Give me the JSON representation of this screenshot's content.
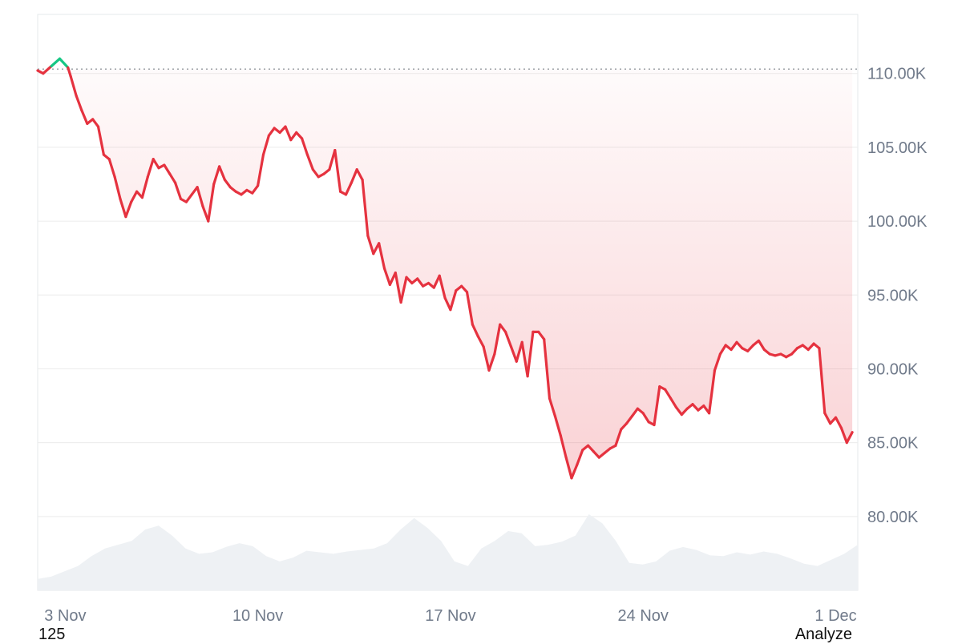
{
  "chart_data": {
    "type": "line",
    "title": "",
    "xlabel": "",
    "ylabel": "",
    "x_ticks": [
      "3 Nov",
      "10 Nov",
      "17 Nov",
      "24 Nov",
      "1 Dec"
    ],
    "y_ticks": [
      "80.00K",
      "85.00K",
      "90.00K",
      "95.00K",
      "100.00K",
      "105.00K",
      "110.00K"
    ],
    "ylim": [
      75000,
      114000
    ],
    "xlim": [
      2.0,
      31.8
    ],
    "reference_line": 110300,
    "grid": true,
    "colors": {
      "down": "#e5323f",
      "up": "#16c784",
      "fill": "#e5323f",
      "volume": "#eef1f4",
      "grid": "#ececec",
      "reference": "#9aa0a6"
    },
    "series": [
      {
        "values": [
          [
            2.0,
            110200
          ],
          [
            2.2,
            110000
          ],
          [
            2.5,
            110500
          ],
          [
            2.8,
            111000
          ],
          [
            3.1,
            110400
          ],
          [
            3.2,
            109800
          ],
          [
            3.4,
            108500
          ],
          [
            3.6,
            107500
          ],
          [
            3.8,
            106600
          ],
          [
            4.0,
            106900
          ],
          [
            4.2,
            106400
          ],
          [
            4.4,
            104500
          ],
          [
            4.6,
            104200
          ],
          [
            4.8,
            103000
          ],
          [
            5.0,
            101500
          ],
          [
            5.2,
            100300
          ],
          [
            5.4,
            101300
          ],
          [
            5.6,
            102000
          ],
          [
            5.8,
            101600
          ],
          [
            6.0,
            103000
          ],
          [
            6.2,
            104200
          ],
          [
            6.4,
            103600
          ],
          [
            6.6,
            103800
          ],
          [
            6.8,
            103200
          ],
          [
            7.0,
            102600
          ],
          [
            7.2,
            101500
          ],
          [
            7.4,
            101300
          ],
          [
            7.6,
            101800
          ],
          [
            7.8,
            102300
          ],
          [
            8.0,
            101000
          ],
          [
            8.2,
            100000
          ],
          [
            8.4,
            102500
          ],
          [
            8.6,
            103700
          ],
          [
            8.8,
            102800
          ],
          [
            9.0,
            102300
          ],
          [
            9.2,
            102000
          ],
          [
            9.4,
            101800
          ],
          [
            9.6,
            102100
          ],
          [
            9.8,
            101900
          ],
          [
            10.0,
            102400
          ],
          [
            10.2,
            104500
          ],
          [
            10.4,
            105800
          ],
          [
            10.6,
            106300
          ],
          [
            10.8,
            106000
          ],
          [
            11.0,
            106400
          ],
          [
            11.2,
            105500
          ],
          [
            11.4,
            106000
          ],
          [
            11.6,
            105600
          ],
          [
            11.8,
            104500
          ],
          [
            12.0,
            103500
          ],
          [
            12.2,
            103000
          ],
          [
            12.4,
            103200
          ],
          [
            12.6,
            103500
          ],
          [
            12.8,
            104800
          ],
          [
            13.0,
            102000
          ],
          [
            13.2,
            101800
          ],
          [
            13.4,
            102600
          ],
          [
            13.6,
            103500
          ],
          [
            13.8,
            102800
          ],
          [
            14.0,
            99000
          ],
          [
            14.2,
            97800
          ],
          [
            14.4,
            98500
          ],
          [
            14.6,
            96800
          ],
          [
            14.8,
            95700
          ],
          [
            15.0,
            96500
          ],
          [
            15.2,
            94500
          ],
          [
            15.4,
            96200
          ],
          [
            15.6,
            95800
          ],
          [
            15.8,
            96100
          ],
          [
            16.0,
            95600
          ],
          [
            16.2,
            95800
          ],
          [
            16.4,
            95500
          ],
          [
            16.6,
            96300
          ],
          [
            16.8,
            94800
          ],
          [
            17.0,
            94000
          ],
          [
            17.2,
            95300
          ],
          [
            17.4,
            95600
          ],
          [
            17.6,
            95200
          ],
          [
            17.8,
            93000
          ],
          [
            18.0,
            92200
          ],
          [
            18.2,
            91500
          ],
          [
            18.4,
            89900
          ],
          [
            18.6,
            91000
          ],
          [
            18.8,
            93000
          ],
          [
            19.0,
            92500
          ],
          [
            19.2,
            91500
          ],
          [
            19.4,
            90500
          ],
          [
            19.6,
            91800
          ],
          [
            19.8,
            89500
          ],
          [
            20.0,
            92500
          ],
          [
            20.2,
            92500
          ],
          [
            20.4,
            92000
          ],
          [
            20.6,
            88000
          ],
          [
            20.8,
            86800
          ],
          [
            21.0,
            85500
          ],
          [
            21.2,
            84000
          ],
          [
            21.4,
            82600
          ],
          [
            21.6,
            83500
          ],
          [
            21.8,
            84500
          ],
          [
            22.0,
            84800
          ],
          [
            22.2,
            84400
          ],
          [
            22.4,
            84000
          ],
          [
            22.6,
            84300
          ],
          [
            22.8,
            84600
          ],
          [
            23.0,
            84800
          ],
          [
            23.2,
            85900
          ],
          [
            23.4,
            86300
          ],
          [
            23.6,
            86800
          ],
          [
            23.8,
            87300
          ],
          [
            24.0,
            87000
          ],
          [
            24.2,
            86400
          ],
          [
            24.4,
            86200
          ],
          [
            24.6,
            88800
          ],
          [
            24.8,
            88600
          ],
          [
            25.0,
            88000
          ],
          [
            25.2,
            87400
          ],
          [
            25.4,
            86900
          ],
          [
            25.6,
            87300
          ],
          [
            25.8,
            87600
          ],
          [
            26.0,
            87200
          ],
          [
            26.2,
            87500
          ],
          [
            26.4,
            87000
          ],
          [
            26.6,
            89900
          ],
          [
            26.8,
            91000
          ],
          [
            27.0,
            91600
          ],
          [
            27.2,
            91300
          ],
          [
            27.4,
            91800
          ],
          [
            27.6,
            91400
          ],
          [
            27.8,
            91200
          ],
          [
            28.0,
            91600
          ],
          [
            28.2,
            91900
          ],
          [
            28.4,
            91300
          ],
          [
            28.6,
            91000
          ],
          [
            28.8,
            90900
          ],
          [
            29.0,
            91000
          ],
          [
            29.2,
            90800
          ],
          [
            29.4,
            91000
          ],
          [
            29.6,
            91400
          ],
          [
            29.8,
            91600
          ],
          [
            30.0,
            91300
          ],
          [
            30.2,
            91700
          ],
          [
            30.4,
            91400
          ],
          [
            30.6,
            87000
          ],
          [
            30.8,
            86300
          ],
          [
            31.0,
            86700
          ],
          [
            31.2,
            86000
          ],
          [
            31.4,
            85000
          ],
          [
            31.6,
            85700
          ]
        ]
      }
    ],
    "volume_profile": [
      0.15,
      0.18,
      0.25,
      0.32,
      0.45,
      0.55,
      0.6,
      0.65,
      0.8,
      0.85,
      0.72,
      0.55,
      0.48,
      0.5,
      0.57,
      0.62,
      0.58,
      0.45,
      0.38,
      0.43,
      0.52,
      0.5,
      0.48,
      0.51,
      0.53,
      0.55,
      0.62,
      0.8,
      0.95,
      0.82,
      0.65,
      0.38,
      0.32,
      0.55,
      0.65,
      0.78,
      0.75,
      0.58,
      0.6,
      0.64,
      0.72,
      1.0,
      0.88,
      0.65,
      0.36,
      0.34,
      0.38,
      0.52,
      0.57,
      0.53,
      0.46,
      0.45,
      0.5,
      0.47,
      0.51,
      0.48,
      0.42,
      0.35,
      0.32,
      0.4,
      0.48,
      0.6
    ]
  },
  "footer": {
    "left_text": "125",
    "right_text": "Analyze"
  }
}
